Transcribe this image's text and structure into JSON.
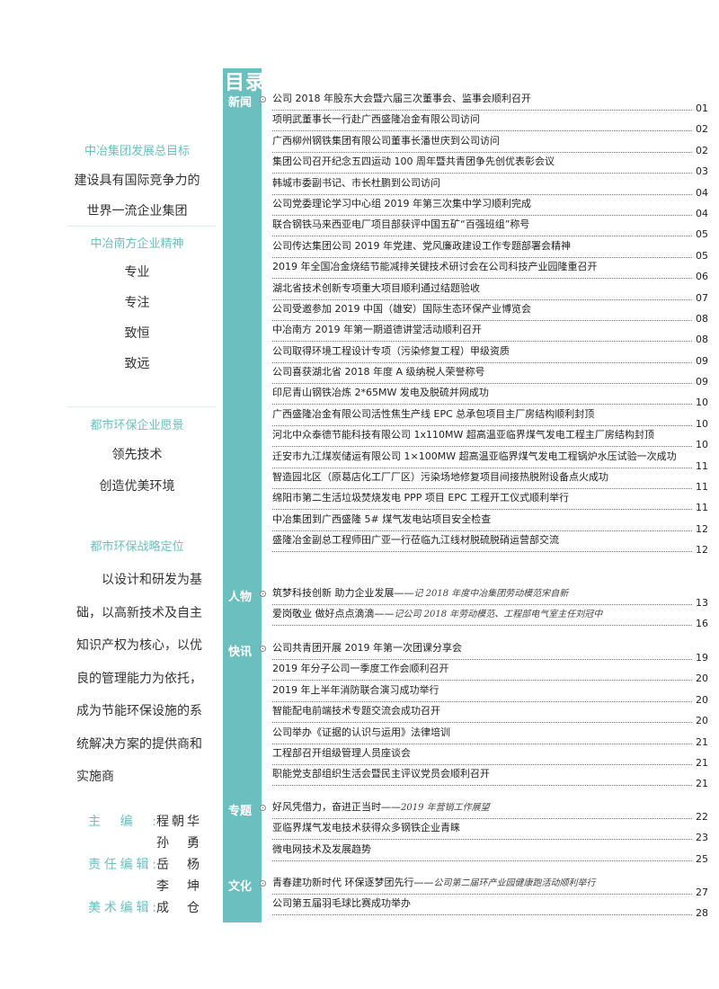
{
  "toc_title": "目录",
  "left": {
    "goal_heading": "中冶集团发展总目标",
    "goal_lines": [
      "建设具有国际竞争力的",
      "世界一流企业集团"
    ],
    "spirit_heading": "中冶南方企业精神",
    "spirit_lines": [
      "专业",
      "专注",
      "致恒",
      "致远"
    ],
    "vision_heading": "都市环保企业愿景",
    "vision_lines": [
      "领先技术",
      "创造优美环境"
    ],
    "position_heading": "都市环保战略定位",
    "position_text": "以设计和研发为基础，以高新技术及自主知识产权为核心，以优良的管理能力为依托，成为节能环保设施的系统解决方案的提供商和实施商",
    "credits": [
      {
        "role": "主编:",
        "names": [
          "程朝华",
          "孙 勇"
        ]
      },
      {
        "role": "责任编辑:",
        "names": [
          "岳 杨",
          "李 坤"
        ]
      },
      {
        "role": "美术编辑:",
        "names": [
          "成 仓"
        ]
      }
    ]
  },
  "accent_color": "#6bbfbe",
  "sections": [
    {
      "label": "新闻",
      "entries": [
        {
          "title": "公司 2018 年股东大会暨六届三次董事会、监事会顺利召开",
          "page": "01"
        },
        {
          "title": "项明武董事长一行赴广西盛隆冶金有限公司访问",
          "page": "02"
        },
        {
          "title": "广西柳州钢铁集团有限公司董事长潘世庆到公司访问",
          "page": "02"
        },
        {
          "title": "集团公司召开纪念五四运动 100 周年暨共青团争先创优表彰会议",
          "page": "03"
        },
        {
          "title": "韩城市委副书记、市长杜鹏到公司访问",
          "page": "04"
        },
        {
          "title": "公司党委理论学习中心组 2019 年第三次集中学习顺利完成",
          "page": "04"
        },
        {
          "title": "联合钢铁马来西亚电厂项目部获评中国五矿“百强班组”称号",
          "page": "05"
        },
        {
          "title": "公司传达集团公司 2019 年党建、党风廉政建设工作专题部署会精神",
          "page": "05"
        },
        {
          "title": "2019 年全国冶金烧结节能减排关键技术研讨会在公司科技产业园隆重召开",
          "page": "06"
        },
        {
          "title": "湖北省技术创新专项重大项目顺利通过结题验收",
          "page": "07"
        },
        {
          "title": "公司受邀参加 2019 中国（雄安）国际生态环保产业博览会",
          "page": "08"
        },
        {
          "title": "中冶南方 2019 年第一期道德讲堂活动顺利召开",
          "page": "08"
        },
        {
          "title": "公司取得环境工程设计专项（污染修复工程）甲级资质",
          "page": "09"
        },
        {
          "title": "公司喜获湖北省 2018 年度 A 级纳税人荣誉称号",
          "page": "09"
        },
        {
          "title": "印尼青山钢铁冶炼 2*65MW 发电及脱硫并网成功",
          "page": "10"
        },
        {
          "title": "广西盛隆冶金有限公司活性焦生产线 EPC 总承包项目主厂房结构顺利封顶",
          "page": "10"
        },
        {
          "title": "河北中众泰德节能科技有限公司 1x110MW 超高温亚临界煤气发电工程主厂房结构封顶",
          "page": "10"
        },
        {
          "title": "迁安市九江煤炭储运有限公司 1×100MW 超高温亚临界煤气发电工程锅炉水压试验一次成功",
          "page": "11"
        },
        {
          "title": "智造园北区（原葛店化工厂厂区）污染场地修复项目间接热脱附设备点火成功",
          "page": "11"
        },
        {
          "title": "绵阳市第二生活垃圾焚烧发电 PPP 项目 EPC 工程开工仪式顺利举行",
          "page": "11"
        },
        {
          "title": "中冶集团到广西盛隆 5# 煤气发电站项目安全检查",
          "page": "12"
        },
        {
          "title": "盛隆冶金副总工程师田广亚一行莅临九江线材脱硫脱硝运营部交流",
          "page": "12"
        }
      ]
    },
    {
      "label": "人物",
      "entries": [
        {
          "title": "筑梦科技创新 助力企业发展——",
          "subtitle": "记 2018 年度中冶集团劳动模范宋自新",
          "page": "13"
        },
        {
          "title": "爱岗敬业 做好点点滴滴——",
          "subtitle": "记公司 2018 年劳动模范、工程部电气室主任刘冠中",
          "page": "16"
        }
      ]
    },
    {
      "label": "快讯",
      "entries": [
        {
          "title": "公司共青团开展 2019 年第一次团课分享会",
          "page": "19"
        },
        {
          "title": "2019 年分子公司一季度工作会顺利召开",
          "page": "20"
        },
        {
          "title": "2019 年上半年消防联合演习成功举行",
          "page": "20"
        },
        {
          "title": "智能配电前端技术专题交流会成功召开",
          "page": "20"
        },
        {
          "title": "公司举办《证据的认识与运用》法律培训",
          "page": "21"
        },
        {
          "title": "工程部召开组级管理人员座谈会",
          "page": "21"
        },
        {
          "title": "职能党支部组织生活会暨民主评议党员会顺利召开",
          "page": "21"
        }
      ]
    },
    {
      "label": "专题",
      "entries": [
        {
          "title": "好风凭借力，奋进正当时——",
          "subtitle": "2019 年营销工作展望",
          "page": "22"
        },
        {
          "title": "亚临界煤气发电技术获得众多钢铁企业青睐",
          "page": "23"
        },
        {
          "title": "微电网技术及发展趋势",
          "page": "25"
        }
      ]
    },
    {
      "label": "文化",
      "entries": [
        {
          "title": "青春建功新时代 环保逐梦团先行——",
          "subtitle": "公司第二届环产业园健康跑活动顺利举行",
          "page": "27"
        },
        {
          "title": "公司第五届羽毛球比赛成功举办",
          "page": "28"
        }
      ]
    }
  ]
}
